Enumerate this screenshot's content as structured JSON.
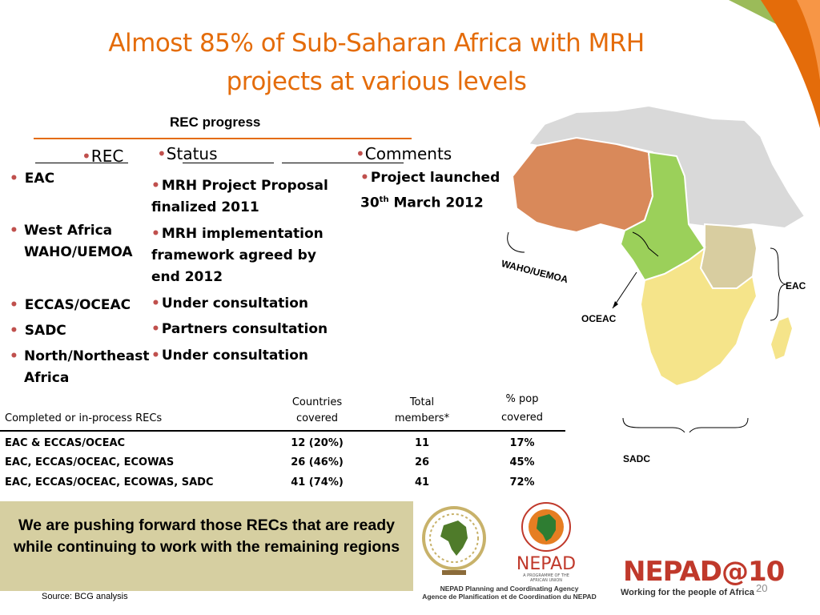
{
  "title": {
    "line1": "Almost 85% of Sub-Saharan Africa with MRH",
    "line2": "projects at various levels"
  },
  "subtitle": "REC progress",
  "columns": {
    "rec": "REC",
    "status": "Status",
    "comments": "Comments"
  },
  "recs": [
    "EAC",
    "West Africa WAHO/UEMOA",
    "ECCAS/OCEAC",
    "SADC",
    "North/Northeast Africa"
  ],
  "status": [
    "MRH Project Proposal finalized 2011",
    "MRH implementation framework agreed by end 2012",
    "Under consultation",
    "Partners consultation",
    "Under consultation"
  ],
  "comments": {
    "line1": "Project launched",
    "day": "30",
    "sup": "th",
    "rest": " March 2012"
  },
  "table": {
    "headers": {
      "recs": "Completed or in-process RECs",
      "countries_l1": "Countries",
      "countries_l2": "covered",
      "members_l1": "Total",
      "members_l2": "members*",
      "pop_l1": "% pop",
      "pop_l2": "covered"
    },
    "rows": [
      {
        "recs": "EAC & ECCAS/OCEAC",
        "countries": "12 (20%)",
        "members": "11",
        "pop": "17%"
      },
      {
        "recs": "EAC, ECCAS/OCEAC, ECOWAS",
        "countries": "26 (46%)",
        "members": "26",
        "pop": "45%"
      },
      {
        "recs": "EAC, ECCAS/OCEAC, ECOWAS, SADC",
        "countries": "41 (74%)",
        "members": "41",
        "pop": "72%"
      }
    ]
  },
  "callout": "We are pushing forward those RECs that are ready while continuing to work with the remaining regions",
  "source": "Source: BCG analysis",
  "map_labels": {
    "waho": "WAHO/UEMOA",
    "oceac": "OCEAC",
    "eac": "EAC",
    "sadc": "SADC"
  },
  "logos": {
    "nepad": "NEPAD",
    "nepad_sub": "A PROGRAMME OF THE AFRICAN UNION",
    "agency_en": "NEPAD Planning and Coordinating Agency",
    "agency_fr": "Agence de Planification et de Coordination du NEPAD",
    "nepad10": "NEPAD@10",
    "tagline": "Working for the people of Africa"
  },
  "page_number": "20",
  "colors": {
    "title": "#e46c0a",
    "waho": "#d9895a",
    "oceac": "#9bd05a",
    "eac": "#d8cda0",
    "sadc": "#f5e48a",
    "north": "#d9d9d9",
    "callout": "#d6cfa1"
  }
}
